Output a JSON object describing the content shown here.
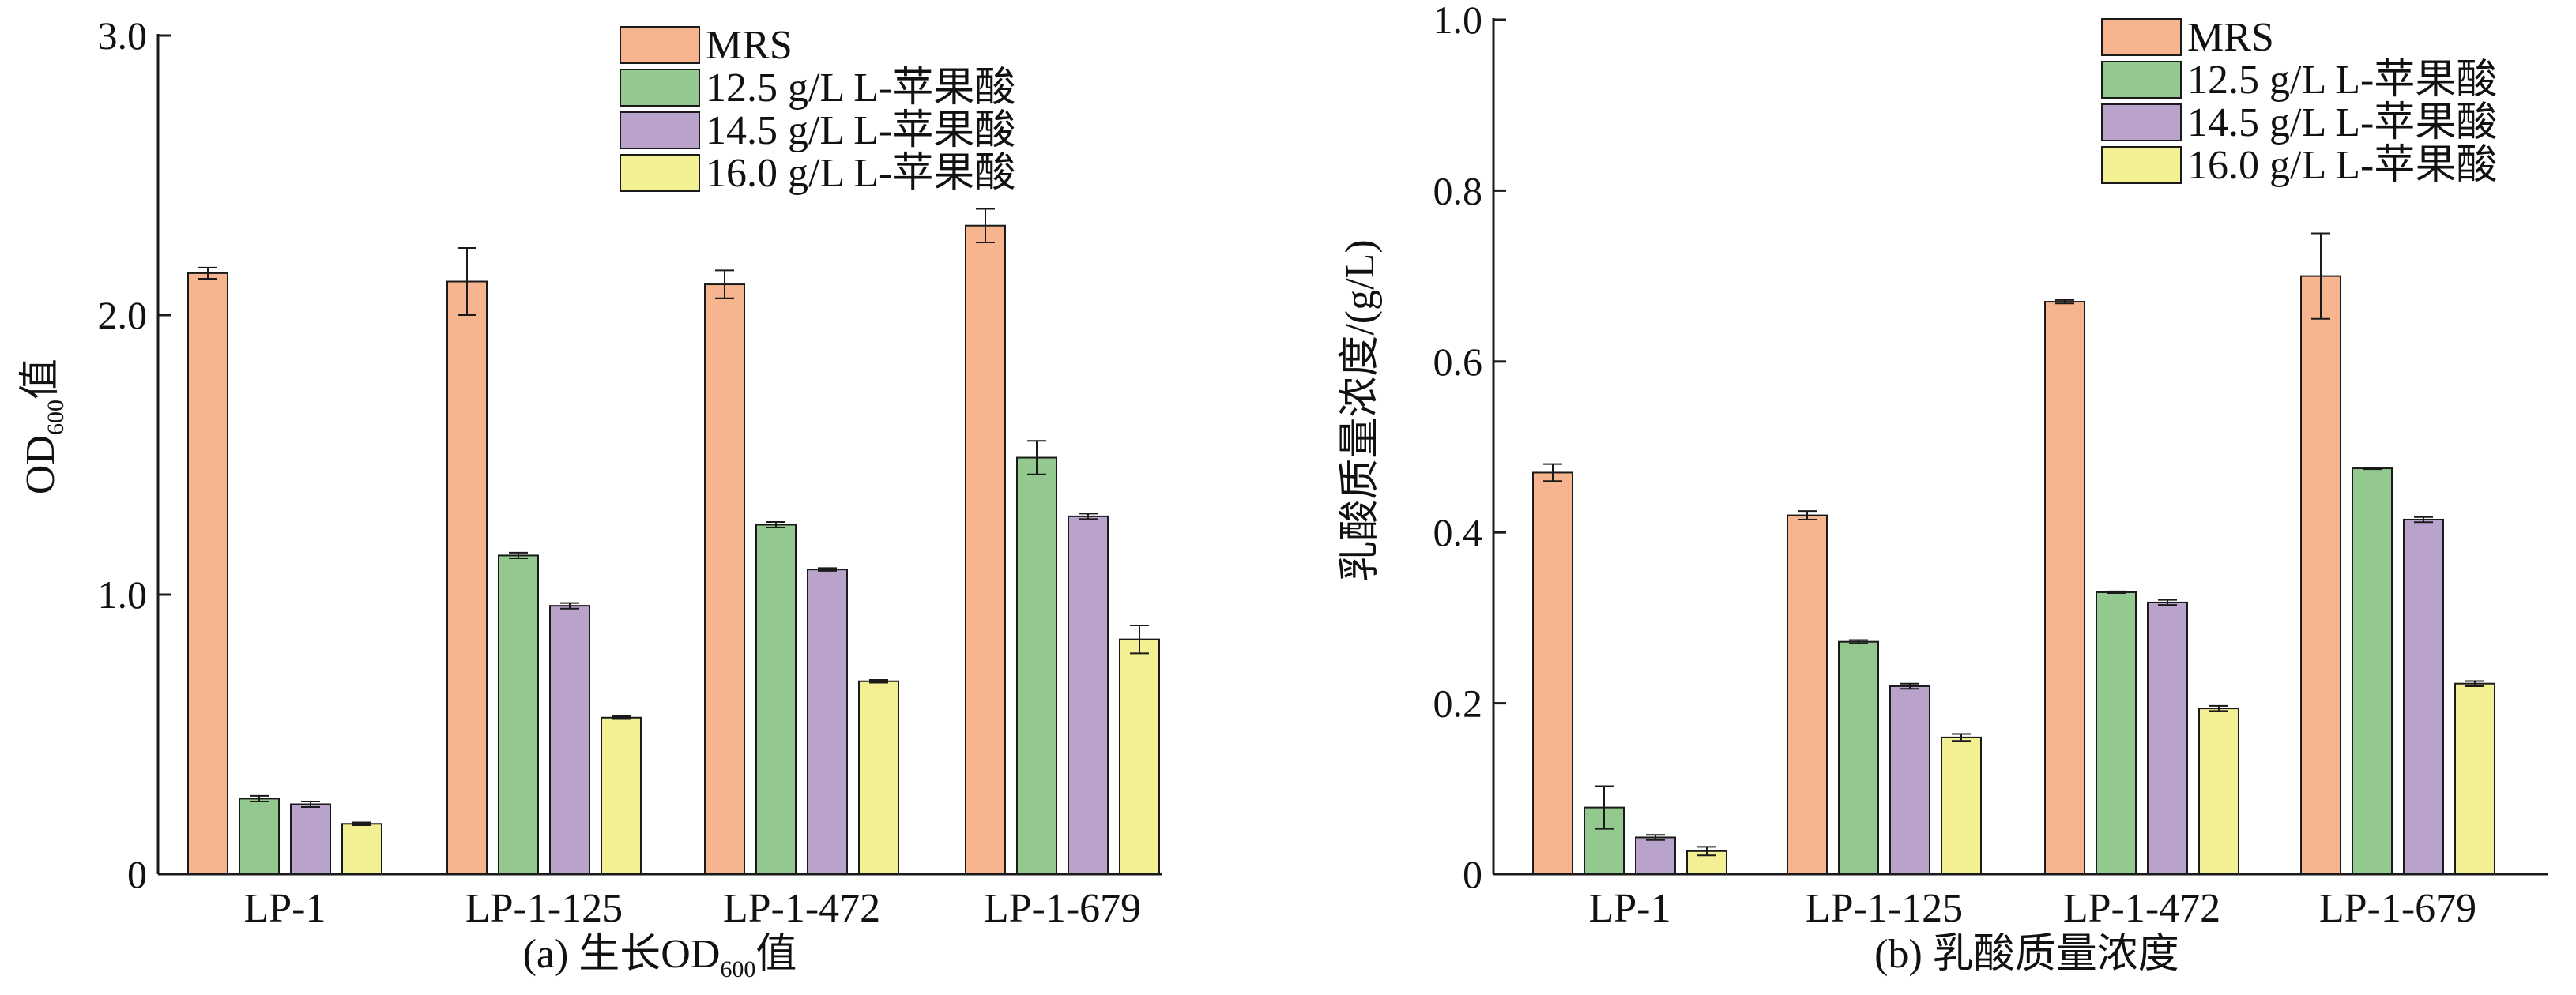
{
  "chart_data": [
    {
      "type": "bar",
      "caption_prefix": "(a) 生长OD",
      "caption_sub": "600",
      "caption_suffix": "值",
      "ylabel_main": "OD",
      "ylabel_sub": "600",
      "ylabel_suffix": "值",
      "ylim": [
        0,
        3.0
      ],
      "yticks": [
        {
          "value": 0,
          "label": "0"
        },
        {
          "value": 1.0,
          "label": "1.0"
        },
        {
          "value": 2.0,
          "label": "2.0"
        },
        {
          "value": 3.0,
          "label": "3.0"
        }
      ],
      "legend_position": "top-right",
      "categories": [
        "LP-1",
        "LP-1-125",
        "LP-1-472",
        "LP-1-679"
      ],
      "series": [
        {
          "name": "MRS",
          "values": [
            2.15,
            2.12,
            2.11,
            2.32
          ],
          "errors": [
            0.02,
            0.12,
            0.05,
            0.06
          ]
        },
        {
          "name": "12.5 g/L L-苹果酸",
          "values": [
            0.27,
            1.14,
            1.25,
            1.49
          ],
          "errors": [
            0.01,
            0.01,
            0.01,
            0.06
          ]
        },
        {
          "name": "14.5 g/L L-苹果酸",
          "values": [
            0.25,
            0.96,
            1.09,
            1.28
          ],
          "errors": [
            0.01,
            0.01,
            0.005,
            0.01
          ]
        },
        {
          "name": "16.0 g/L L-苹果酸",
          "values": [
            0.18,
            0.56,
            0.69,
            0.84
          ],
          "errors": [
            0.005,
            0.005,
            0.005,
            0.05
          ]
        }
      ]
    },
    {
      "type": "bar",
      "caption_prefix": "(b) 乳酸质量浓度",
      "caption_sub": "",
      "caption_suffix": "",
      "ylabel_main": "乳酸质量浓度/(g/L)",
      "ylabel_sub": "",
      "ylabel_suffix": "",
      "ylim": [
        0,
        1.0
      ],
      "yticks": [
        {
          "value": 0,
          "label": "0"
        },
        {
          "value": 0.2,
          "label": "0.2"
        },
        {
          "value": 0.4,
          "label": "0.4"
        },
        {
          "value": 0.6,
          "label": "0.6"
        },
        {
          "value": 0.8,
          "label": "0.8"
        },
        {
          "value": 1.0,
          "label": "1.0"
        }
      ],
      "legend_position": "top-right",
      "categories": [
        "LP-1",
        "LP-1-125",
        "LP-1-472",
        "LP-1-679"
      ],
      "series": [
        {
          "name": "MRS",
          "values": [
            0.47,
            0.42,
            0.67,
            0.7
          ],
          "errors": [
            0.01,
            0.005,
            0.002,
            0.05
          ]
        },
        {
          "name": "12.5 g/L L-苹果酸",
          "values": [
            0.078,
            0.272,
            0.33,
            0.475
          ],
          "errors": [
            0.025,
            0.002,
            0.001,
            0.001
          ]
        },
        {
          "name": "14.5 g/L L-苹果酸",
          "values": [
            0.043,
            0.22,
            0.318,
            0.415
          ],
          "errors": [
            0.003,
            0.003,
            0.003,
            0.003
          ]
        },
        {
          "name": "16.0 g/L L-苹果酸",
          "values": [
            0.027,
            0.16,
            0.194,
            0.223
          ],
          "errors": [
            0.005,
            0.004,
            0.003,
            0.003
          ]
        }
      ]
    }
  ],
  "colors": {
    "MRS": "#f6b58f",
    "g125": "#93c98e",
    "g145": "#b9a3cb",
    "g160": "#f2f092",
    "stroke": "#1a1a1a"
  }
}
